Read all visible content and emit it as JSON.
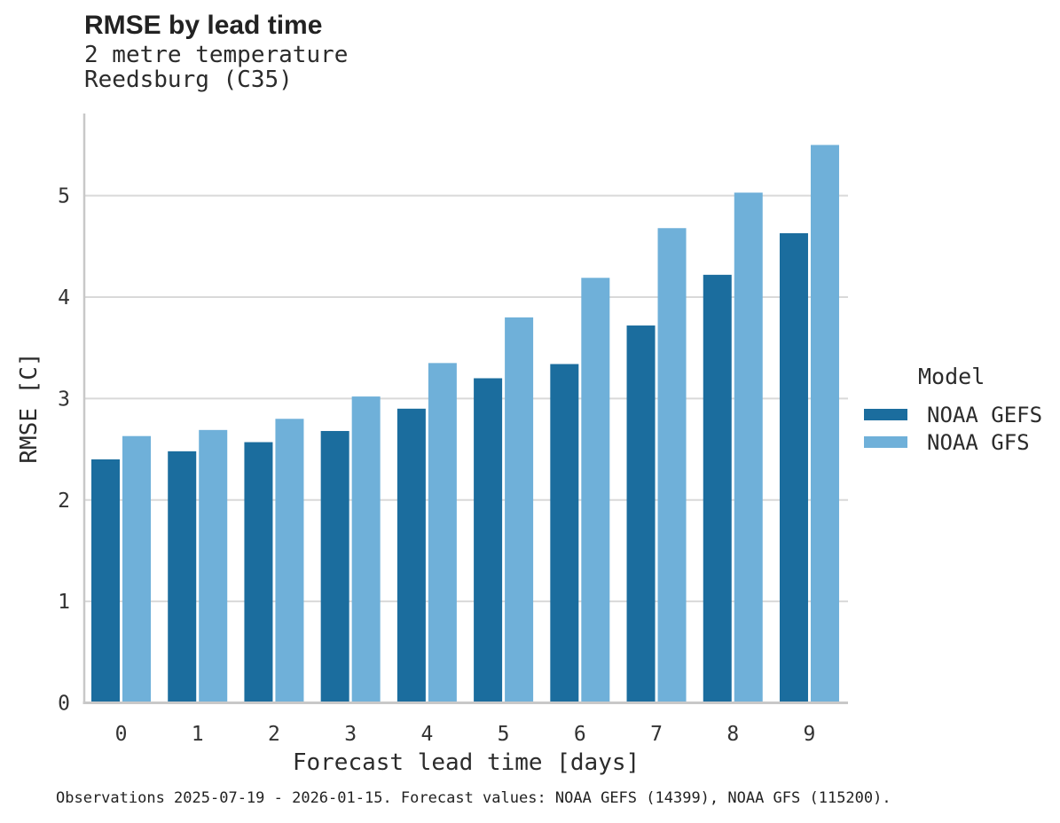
{
  "header": {
    "title": "RMSE by lead time",
    "subtitle_line1": "2 metre temperature",
    "subtitle_line2": "Reedsburg (C35)"
  },
  "chart_data": {
    "type": "bar",
    "grouped": true,
    "title": "RMSE by lead time",
    "subtitle": [
      "2 metre temperature",
      "Reedsburg (C35)"
    ],
    "categories": [
      "0",
      "1",
      "2",
      "3",
      "4",
      "5",
      "6",
      "7",
      "8",
      "9"
    ],
    "series": [
      {
        "name": "NOAA GEFS",
        "color": "#1b6d9e",
        "values": [
          2.4,
          2.48,
          2.57,
          2.68,
          2.9,
          3.2,
          3.34,
          3.72,
          4.22,
          4.63
        ]
      },
      {
        "name": "NOAA GFS",
        "color": "#6fb0d9",
        "values": [
          2.63,
          2.69,
          2.8,
          3.02,
          3.35,
          3.8,
          4.19,
          4.68,
          5.03,
          5.5
        ]
      }
    ],
    "xlabel": "Forecast lead time [days]",
    "ylabel": "RMSE [C]",
    "ylim": [
      0,
      5.81
    ],
    "yticks": [
      0,
      1,
      2,
      3,
      4,
      5
    ],
    "grid": "horizontal",
    "legend_position": "right-of-plot"
  },
  "legend": {
    "title": "Model",
    "entries": [
      {
        "label": "NOAA GEFS",
        "color": "#1b6d9e"
      },
      {
        "label": "NOAA GFS",
        "color": "#6fb0d9"
      }
    ]
  },
  "footer": {
    "text": "Observations 2025-07-19 - 2026-01-15. Forecast values: NOAA GEFS (14399), NOAA GFS (115200)."
  },
  "colors": {
    "grid": "#d9d9d9",
    "spine": "#c8c8c8",
    "tick_text": "#333333",
    "text": "#2b2b2b"
  }
}
